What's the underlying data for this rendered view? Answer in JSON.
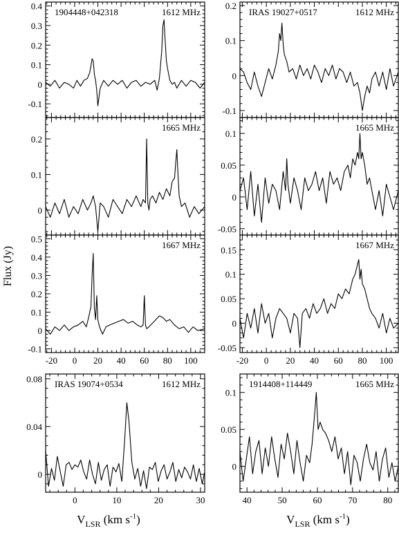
{
  "figure": {
    "ylabel": "Flux (Jy)",
    "xlabel_main": "V",
    "xlabel_sub": "LSR",
    "xlabel_units_pre": " (km s",
    "xlabel_units_sup": "-1",
    "xlabel_units_post": ")"
  },
  "chart_data": [
    {
      "id": "p1",
      "type": "line",
      "source": "1904448+042318",
      "label": "1612 MHz",
      "xlim": [
        -25,
        112
      ],
      "ylim": [
        -0.17,
        0.42
      ],
      "yticks": [
        -0.1,
        0,
        0.1,
        0.2,
        0.3,
        0.4
      ],
      "ytick_labels": [
        "-0.1",
        "0",
        "0.1",
        "0.2",
        "0.3",
        "0.4"
      ],
      "xticks": [
        -20,
        0,
        20,
        40,
        60,
        80,
        100
      ],
      "xtick_labels": [],
      "x": [
        -25,
        -21,
        -17,
        -13,
        -9,
        -5,
        -1,
        2,
        5,
        8,
        11,
        13,
        15,
        16,
        17,
        18,
        19,
        20,
        22,
        25,
        29,
        33,
        37,
        41,
        45,
        49,
        53,
        57,
        61,
        65,
        69,
        71,
        73,
        75,
        76,
        77,
        78,
        79,
        80,
        81,
        82,
        84,
        86,
        88,
        92,
        96,
        100,
        104,
        108,
        112
      ],
      "values": [
        0.01,
        -0.01,
        0.02,
        -0.02,
        0.01,
        0,
        -0.02,
        0.02,
        -0.01,
        0.02,
        0.03,
        0.06,
        0.13,
        0.12,
        0.05,
        0.02,
        -0.03,
        -0.11,
        -0.02,
        0.02,
        -0.01,
        0.02,
        0,
        0.02,
        -0.02,
        0.01,
        0.02,
        -0.01,
        0.01,
        0,
        0.02,
        -0.03,
        0.03,
        0.17,
        0.3,
        0.33,
        0.22,
        0.12,
        0.08,
        0.05,
        0.02,
        0,
        0.01,
        -0.02,
        0.02,
        -0.01,
        0.02,
        0.01,
        -0.02,
        0.01
      ]
    },
    {
      "id": "p2",
      "type": "line",
      "source": "IRAS 19027+0517",
      "label": "1612 MHz",
      "xlim": [
        -22,
        110
      ],
      "ylim": [
        -0.12,
        0.21
      ],
      "yticks": [
        -0.1,
        0,
        0.1,
        0.2
      ],
      "ytick_labels": [
        "-0.1",
        "0",
        "0.1",
        "0.2"
      ],
      "xticks": [
        -20,
        0,
        20,
        40,
        60,
        80,
        100
      ],
      "xtick_labels": [],
      "x": [
        -22,
        -19,
        -16,
        -13,
        -10,
        -7,
        -4,
        -1,
        2,
        5,
        8,
        10,
        11,
        12,
        13,
        14,
        15,
        17,
        19,
        22,
        25,
        28,
        31,
        34,
        37,
        40,
        43,
        46,
        49,
        52,
        55,
        58,
        61,
        64,
        67,
        70,
        73,
        76,
        78,
        80,
        82,
        84,
        86,
        88,
        91,
        94,
        97,
        100,
        103,
        106,
        110
      ],
      "values": [
        0.02,
        0.01,
        -0.02,
        -0.04,
        0.01,
        -0.03,
        -0.06,
        -0.02,
        0.02,
        -0.01,
        0.03,
        0.07,
        0.12,
        0.1,
        0.15,
        0.09,
        0.06,
        0.04,
        0.01,
        0.02,
        -0.01,
        0.03,
        0,
        0.02,
        -0.01,
        0.03,
        0.01,
        -0.02,
        0.02,
        0,
        0.03,
        -0.01,
        0.02,
        0.01,
        -0.02,
        0.01,
        -0.03,
        -0.02,
        -0.05,
        -0.1,
        -0.06,
        -0.03,
        -0.05,
        -0.01,
        0.01,
        -0.03,
        0.01,
        -0.04,
        0.02,
        -0.03,
        0.01
      ]
    },
    {
      "id": "p3",
      "type": "line",
      "source": "",
      "label": "1665 MHz",
      "xlim": [
        -25,
        112
      ],
      "ylim": [
        -0.07,
        0.26
      ],
      "yticks": [
        0,
        0.1,
        0.2
      ],
      "ytick_labels": [
        "0",
        "0.1",
        "0.2"
      ],
      "xticks": [
        -20,
        0,
        20,
        40,
        60,
        80,
        100
      ],
      "xtick_labels": [],
      "x": [
        -25,
        -21,
        -17,
        -13,
        -9,
        -5,
        -1,
        3,
        7,
        11,
        14,
        16,
        18,
        20,
        22,
        25,
        29,
        33,
        37,
        41,
        45,
        49,
        53,
        57,
        59,
        61,
        62,
        63,
        64,
        65,
        67,
        70,
        73,
        76,
        79,
        82,
        84,
        86,
        87,
        88,
        89,
        90,
        92,
        95,
        99,
        103,
        107,
        112
      ],
      "values": [
        0.01,
        -0.02,
        0.02,
        -0.01,
        0.03,
        -0.02,
        0.01,
        -0.01,
        0.03,
        0,
        0.02,
        0.04,
        0.01,
        -0.06,
        0.02,
        0.01,
        -0.02,
        0.03,
        0.01,
        -0.01,
        0.03,
        0.01,
        0.04,
        0.01,
        0.03,
        0.02,
        0.2,
        0.02,
        0,
        0.03,
        0.04,
        0.02,
        0.05,
        0.03,
        0.06,
        0.04,
        0.08,
        0.09,
        0.13,
        0.17,
        0.1,
        0.04,
        0.01,
        0.02,
        -0.02,
        0.01,
        -0.01,
        0.01
      ]
    },
    {
      "id": "p4",
      "type": "line",
      "source": "",
      "label": "1665 MHz",
      "xlim": [
        -22,
        110
      ],
      "ylim": [
        -0.06,
        0.125
      ],
      "yticks": [
        -0.05,
        0,
        0.05,
        0.1
      ],
      "ytick_labels": [
        "-0.05",
        "0",
        "0.05",
        "0.1"
      ],
      "xticks": [
        -20,
        0,
        20,
        40,
        60,
        80,
        100
      ],
      "xtick_labels": [],
      "x": [
        -22,
        -19,
        -16,
        -13,
        -10,
        -7,
        -4,
        -1,
        2,
        5,
        8,
        11,
        14,
        16,
        17,
        18,
        20,
        23,
        26,
        29,
        32,
        35,
        38,
        41,
        44,
        47,
        50,
        53,
        56,
        59,
        62,
        65,
        68,
        70,
        72,
        74,
        76,
        77,
        78,
        79,
        80,
        82,
        84,
        86,
        88,
        91,
        94,
        97,
        100,
        103,
        106,
        110
      ],
      "values": [
        0.01,
        0.03,
        -0.02,
        0.04,
        -0.03,
        0.02,
        -0.04,
        0.03,
        -0.01,
        0.02,
        0.01,
        -0.02,
        0.04,
        0.01,
        0.06,
        0.02,
        -0.01,
        0.03,
        0.01,
        -0.02,
        0.03,
        0.01,
        0.02,
        0.04,
        0.01,
        0.03,
        -0.01,
        0.04,
        0.02,
        0.03,
        0.01,
        0.04,
        0.05,
        0.03,
        0.06,
        0.05,
        0.07,
        0.06,
        0.1,
        0.06,
        0.07,
        0.05,
        0.02,
        0.03,
        0.01,
        -0.02,
        0.01,
        -0.03,
        0.02,
        0,
        -0.02,
        0.01
      ]
    },
    {
      "id": "p5",
      "type": "line",
      "source": "",
      "label": "1667 MHz",
      "xlim": [
        -25,
        112
      ],
      "ylim": [
        -0.12,
        0.52
      ],
      "yticks": [
        -0.1,
        0,
        0.1,
        0.2,
        0.3,
        0.4,
        0.5
      ],
      "ytick_labels": [
        "-0.1",
        "0",
        "0.1",
        "0.2",
        "0.3",
        "0.4",
        "0.5"
      ],
      "xticks": [
        -20,
        0,
        20,
        40,
        60,
        80,
        100
      ],
      "xtick_labels": [
        "-20",
        "0",
        "20",
        "40",
        "60",
        "80",
        "100"
      ],
      "x": [
        -25,
        -21,
        -17,
        -13,
        -9,
        -5,
        -1,
        3,
        7,
        10,
        12,
        14,
        15,
        16,
        17,
        18,
        19,
        20,
        21,
        22,
        24,
        27,
        30,
        34,
        38,
        42,
        46,
        50,
        54,
        57,
        59,
        60,
        61,
        62,
        64,
        67,
        70,
        73,
        76,
        79,
        82,
        86,
        90,
        94,
        98,
        102,
        106,
        112
      ],
      "values": [
        0.01,
        -0.02,
        0.02,
        0,
        0.03,
        0,
        0.02,
        0.03,
        0.05,
        0.02,
        0.07,
        0.13,
        0.3,
        0.42,
        0.12,
        0.06,
        0.19,
        0.06,
        0.03,
        0.01,
        -0.02,
        0.02,
        0.03,
        0.04,
        0.05,
        0.06,
        0.04,
        0.05,
        0.03,
        0.02,
        0.03,
        0.19,
        0.03,
        0.01,
        0.02,
        0.04,
        0.06,
        0.08,
        0.07,
        0.05,
        0.06,
        0.03,
        0.01,
        0.02,
        -0.01,
        0.02,
        0,
        0.01
      ]
    },
    {
      "id": "p6",
      "type": "line",
      "source": "",
      "label": "1667 MHz",
      "xlim": [
        -22,
        110
      ],
      "ylim": [
        -0.06,
        0.18
      ],
      "yticks": [
        -0.05,
        0,
        0.05,
        0.1,
        0.15
      ],
      "ytick_labels": [
        "-0.05",
        "0",
        "0.05",
        "0.1",
        "0.15"
      ],
      "xticks": [
        -20,
        0,
        20,
        40,
        60,
        80,
        100
      ],
      "xtick_labels": [
        "-20",
        "0",
        "20",
        "40",
        "60",
        "80",
        "100"
      ],
      "x": [
        -22,
        -19,
        -16,
        -13,
        -10,
        -7,
        -4,
        -1,
        2,
        5,
        8,
        11,
        14,
        17,
        20,
        23,
        26,
        28,
        30,
        33,
        36,
        39,
        42,
        45,
        48,
        51,
        54,
        57,
        60,
        63,
        66,
        69,
        72,
        74,
        76,
        77,
        78,
        79,
        80,
        82,
        84,
        86,
        88,
        91,
        94,
        97,
        100,
        103,
        106,
        110
      ],
      "values": [
        0.01,
        -0.03,
        0.02,
        -0.01,
        0.03,
        -0.02,
        0.04,
        0,
        0.02,
        -0.03,
        0.01,
        0.03,
        0.02,
        0.01,
        -0.02,
        0.02,
        0.01,
        -0.05,
        0.02,
        0.03,
        0.01,
        0.04,
        0.02,
        0.03,
        0.05,
        0.02,
        0.04,
        0.03,
        0.06,
        0.05,
        0.07,
        0.06,
        0.09,
        0.1,
        0.12,
        0.13,
        0.09,
        0.11,
        0.08,
        0.07,
        0.05,
        0.03,
        0.02,
        0.01,
        -0.01,
        0.02,
        -0.02,
        0.01,
        -0.01,
        0
      ]
    },
    {
      "id": "p7",
      "type": "line",
      "source": "IRAS 19074+0534",
      "label": "1612 MHz",
      "xlim": [
        -7,
        31
      ],
      "ylim": [
        -0.015,
        0.084
      ],
      "yticks": [
        0,
        0.04,
        0.08
      ],
      "ytick_labels": [
        "0",
        "0.04",
        "0.08"
      ],
      "xticks": [
        0,
        10,
        20,
        30
      ],
      "xtick_labels": [
        "0",
        "10",
        "20",
        "30"
      ],
      "x": [
        -7,
        -6.3,
        -5.6,
        -4.9,
        -4.2,
        -3.5,
        -2.8,
        -2.1,
        -1.4,
        -0.7,
        0,
        0.7,
        1.4,
        2.1,
        2.8,
        3.5,
        4.2,
        4.9,
        5.6,
        6.3,
        7,
        7.7,
        8.4,
        9.1,
        9.8,
        10.5,
        11.2,
        11.9,
        12.4,
        12.9,
        13.6,
        14.3,
        15,
        15.7,
        16.4,
        17.1,
        17.8,
        18.5,
        19.2,
        19.9,
        20.6,
        21.3,
        22,
        22.7,
        23.4,
        24.1,
        24.8,
        25.5,
        26.2,
        26.9,
        27.6,
        28.3,
        29,
        29.7,
        30.4,
        31
      ],
      "values": [
        0.02,
        -0.01,
        0.005,
        -0.005,
        0.015,
        0.002,
        -0.01,
        0.008,
        0.01,
        0.004,
        0.008,
        0.006,
        0.012,
        0.002,
        -0.004,
        0.012,
        0,
        -0.008,
        0.01,
        -0.005,
        0.004,
        0.008,
        -0.01,
        0.006,
        0.002,
        0.009,
        -0.006,
        0.03,
        0.06,
        0.045,
        0.01,
        -0.004,
        0.005,
        -0.01,
        0.003,
        -0.012,
        0.006,
        0.004,
        0.01,
        -0.006,
        0.003,
        0.008,
        -0.004,
        0.002,
        0.01,
        -0.006,
        0.004,
        -0.003,
        0.006,
        0.002,
        -0.004,
        0.008,
        -0.006,
        0.005,
        -0.008,
        0.002
      ]
    },
    {
      "id": "p8",
      "type": "line",
      "source": "1914408+114449",
      "label": "1665 MHz",
      "xlim": [
        38,
        83
      ],
      "ylim": [
        -0.035,
        0.125
      ],
      "yticks": [
        0,
        0.05,
        0.1
      ],
      "ytick_labels": [
        "0",
        "0.05",
        "0.1"
      ],
      "xticks": [
        40,
        50,
        60,
        70,
        80
      ],
      "xtick_labels": [
        "40",
        "50",
        "60",
        "70",
        "80"
      ],
      "x": [
        38,
        38.9,
        39.8,
        40.7,
        41.6,
        42.5,
        43.4,
        44.3,
        45.2,
        46.1,
        47,
        47.9,
        48.8,
        49.7,
        50.6,
        51.5,
        52.4,
        53.3,
        54.2,
        55.1,
        56,
        56.9,
        57.8,
        58.5,
        59.2,
        59.7,
        60.2,
        60.8,
        61.5,
        62.3,
        63.2,
        64.1,
        65,
        65.9,
        66.8,
        67.7,
        68.6,
        69.5,
        70.4,
        71.3,
        72.2,
        73.1,
        74,
        74.9,
        75.8,
        76.7,
        77.6,
        78.5,
        79.4,
        80.3,
        81.2,
        82.1,
        83
      ],
      "values": [
        0.02,
        -0.02,
        0.01,
        0.04,
        -0.01,
        0.02,
        0.035,
        -0.01,
        0.025,
        0,
        0.04,
        0.01,
        -0.015,
        0.03,
        0.01,
        0.045,
        0.02,
        -0.01,
        0.035,
        0.005,
        -0.02,
        0.015,
        0.005,
        0.03,
        0.07,
        0.1,
        0.05,
        0.06,
        0.05,
        0.045,
        0.035,
        0.02,
        0.04,
        0.01,
        0.025,
        -0.01,
        0.02,
        -0.025,
        0.015,
        0.005,
        -0.02,
        0.01,
        0.03,
        0.005,
        -0.005,
        0.02,
        -0.02,
        0.01,
        0.025,
        -0.015,
        0.005,
        -0.02,
        0
      ]
    }
  ]
}
